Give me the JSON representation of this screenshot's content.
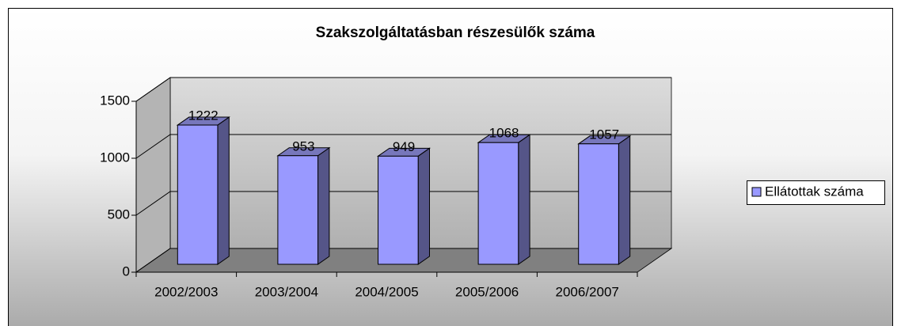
{
  "chart_data": {
    "type": "bar3d",
    "title": "Szakszolgáltatásban részesülők száma",
    "categories": [
      "2002/2003",
      "2003/2004",
      "2004/2005",
      "2005/2006",
      "2006/2007"
    ],
    "series": [
      {
        "name": "Ellátottak száma",
        "color": "#9999ff",
        "values": [
          1222,
          953,
          949,
          1068,
          1057
        ]
      }
    ],
    "ylim": [
      0,
      1500
    ],
    "yticks": [
      0,
      500,
      1000,
      1500
    ],
    "grid": true,
    "legend": "right"
  }
}
